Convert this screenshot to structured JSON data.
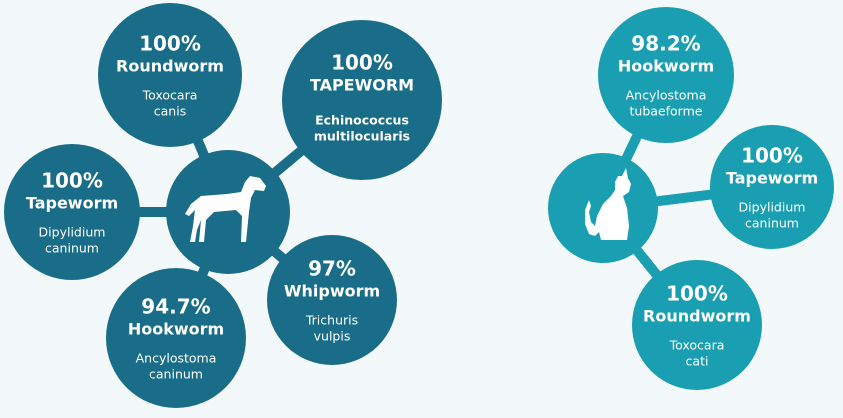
{
  "groups": [
    {
      "nodes": [
        {
          "percent": "100%",
          "name": "Roundworm",
          "species": [
            "Toxocara",
            "canis"
          ]
        },
        {
          "percent": "100%",
          "name": "TAPEWORM",
          "species": [
            "Echinococcus",
            "multilocularis"
          ]
        },
        {
          "percent": "100%",
          "name": "Tapeworm",
          "species": [
            "Dipylidium",
            "caninum"
          ]
        },
        {
          "percent": "97%",
          "name": "Whipworm",
          "species": [
            "Trichuris",
            "vulpis"
          ]
        },
        {
          "percent": "94.7%",
          "name": "Hookworm",
          "species": [
            "Ancylostoma",
            "caninum"
          ]
        }
      ]
    },
    {
      "nodes": [
        {
          "percent": "98.2%",
          "name": "Hookworm",
          "species": [
            "Ancylostoma",
            "tubaeforme"
          ]
        },
        {
          "percent": "100%",
          "name": "Tapeworm",
          "species": [
            "Dipylidium",
            "caninum"
          ]
        },
        {
          "percent": "100%",
          "name": "Roundworm",
          "species": [
            "Toxocara",
            "cati"
          ]
        }
      ]
    }
  ]
}
